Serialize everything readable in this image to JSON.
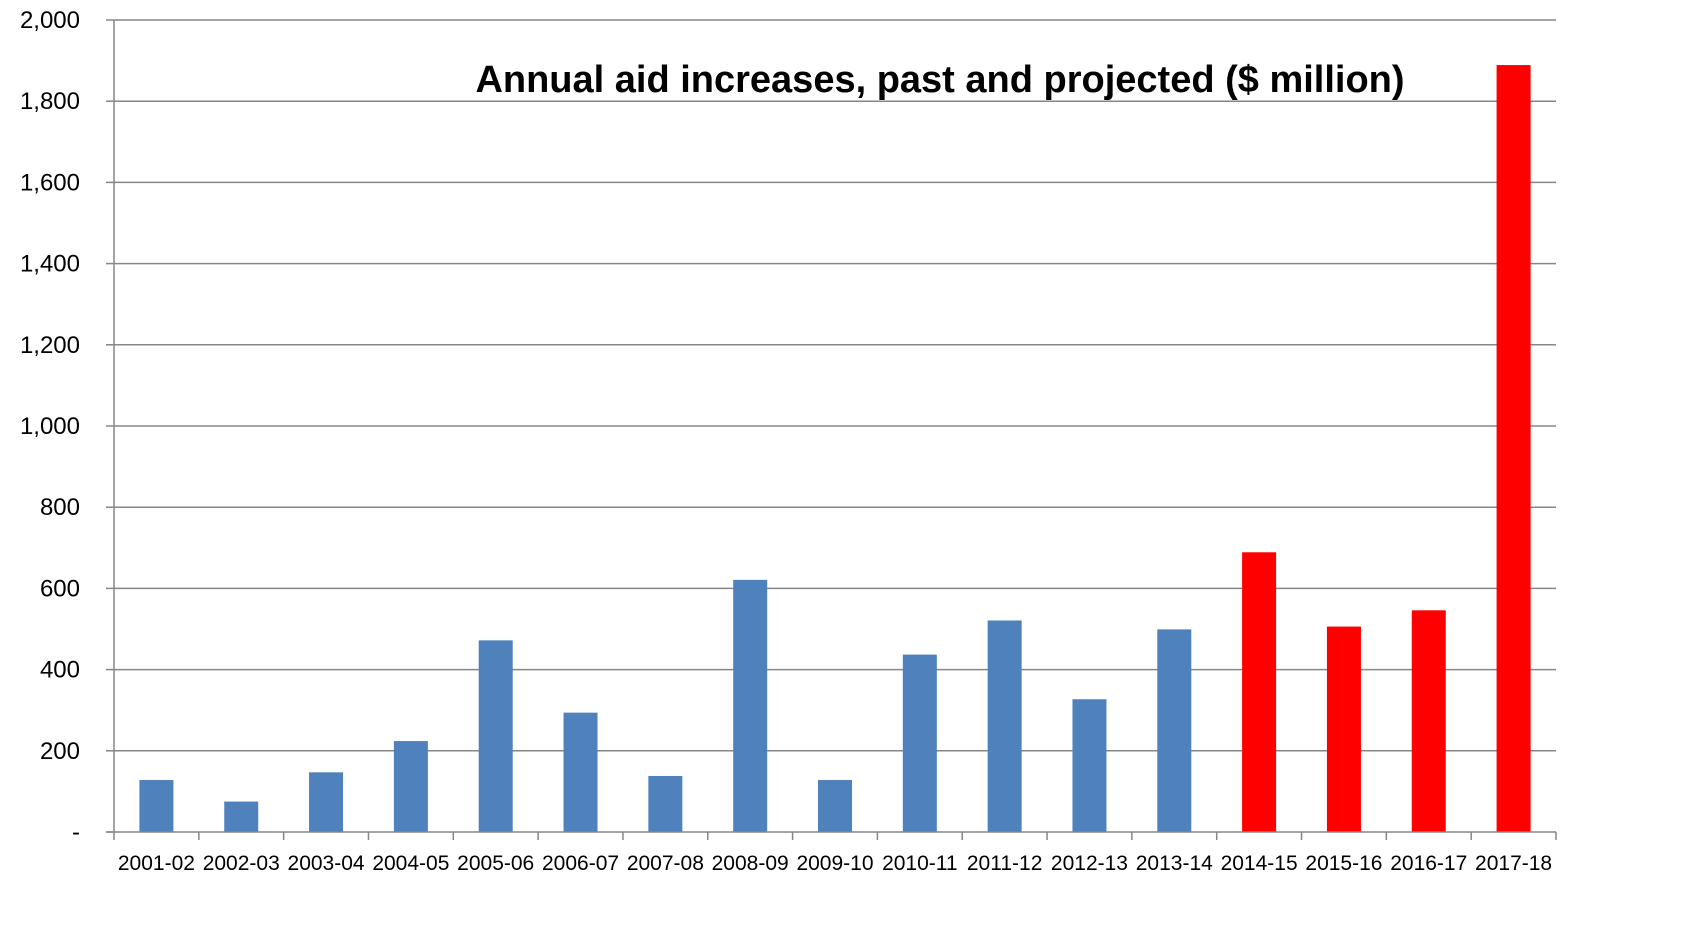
{
  "chart_data": {
    "type": "bar",
    "title": "Annual aid increases, past and projected ($ million)",
    "xlabel": "",
    "ylabel": "",
    "ylim": [
      0,
      2000
    ],
    "yticks": [
      {
        "value": 0,
        "label": "-"
      },
      {
        "value": 200,
        "label": "200"
      },
      {
        "value": 400,
        "label": "400"
      },
      {
        "value": 600,
        "label": "600"
      },
      {
        "value": 800,
        "label": "800"
      },
      {
        "value": 1000,
        "label": "1,000"
      },
      {
        "value": 1200,
        "label": "1,200"
      },
      {
        "value": 1400,
        "label": "1,400"
      },
      {
        "value": 1600,
        "label": "1,600"
      },
      {
        "value": 1800,
        "label": "1,800"
      },
      {
        "value": 2000,
        "label": "2,000"
      }
    ],
    "grid": true,
    "legend": false,
    "categories": [
      "2001-02",
      "2002-03",
      "2003-04",
      "2004-05",
      "2005-06",
      "2006-07",
      "2007-08",
      "2008-09",
      "2009-10",
      "2010-11",
      "2011-12",
      "2012-13",
      "2013-14",
      "2014-15",
      "2015-16",
      "2016-17",
      "2017-18"
    ],
    "values": [
      128,
      75,
      147,
      224,
      472,
      294,
      138,
      621,
      128,
      437,
      521,
      327,
      499,
      689,
      506,
      546,
      1889
    ],
    "projected": [
      false,
      false,
      false,
      false,
      false,
      false,
      false,
      false,
      false,
      false,
      false,
      false,
      false,
      true,
      true,
      true,
      true
    ],
    "colors": {
      "past": "#4F81BD",
      "projected": "#FF0000",
      "grid": "#868686",
      "axis": "#868686"
    }
  }
}
